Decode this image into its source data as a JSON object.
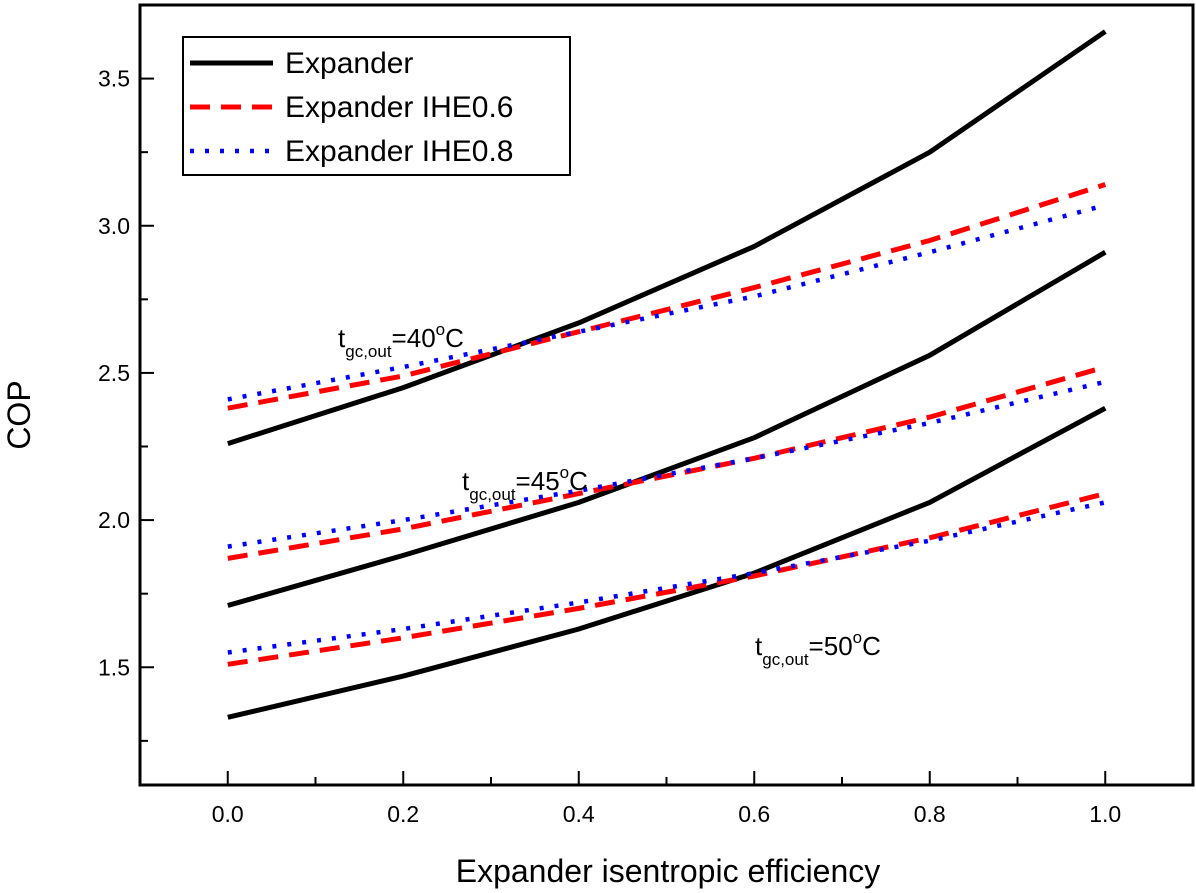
{
  "chart_data": {
    "type": "line",
    "title": "",
    "xlabel": "Expander isentropic efficiency",
    "ylabel": "COP",
    "xlim": [
      -0.1,
      1.1
    ],
    "ylim": [
      1.1,
      3.75
    ],
    "xticks": [
      0.0,
      0.2,
      0.4,
      0.6,
      0.8,
      1.0
    ],
    "xtick_labels": [
      "0.0",
      "0.2",
      "0.4",
      "0.6",
      "0.8",
      "1.0"
    ],
    "yticks": [
      1.5,
      2.0,
      2.5,
      3.0,
      3.5
    ],
    "ytick_labels": [
      "1.5",
      "2.0",
      "2.5",
      "3.0",
      "3.5"
    ],
    "grid": false,
    "legend_position": "top-left",
    "legend": [
      {
        "label": "Expander",
        "style": "solid",
        "color": "#000000"
      },
      {
        "label": "Expander IHE0.6",
        "style": "dashed",
        "color": "#ff0000"
      },
      {
        "label": "Expander IHE0.8",
        "style": "dotted",
        "color": "#0000ff"
      }
    ],
    "x": [
      0.0,
      0.2,
      0.4,
      0.6,
      0.8,
      1.0
    ],
    "groups": [
      {
        "annotation": {
          "base": "t",
          "sub": "gc,out",
          "mid": "=40",
          "sup": "o",
          "tail": "C"
        },
        "series": [
          {
            "name": "Expander",
            "values": [
              2.26,
              2.45,
              2.67,
              2.93,
              3.25,
              3.66
            ]
          },
          {
            "name": "Expander IHE0.6",
            "values": [
              2.38,
              2.49,
              2.64,
              2.79,
              2.95,
              3.14
            ]
          },
          {
            "name": "Expander IHE0.8",
            "values": [
              2.41,
              2.52,
              2.64,
              2.76,
              2.91,
              3.07
            ]
          }
        ]
      },
      {
        "annotation": {
          "base": "t",
          "sub": "gc,out",
          "mid": "=45",
          "sup": "o",
          "tail": "C"
        },
        "series": [
          {
            "name": "Expander",
            "values": [
              1.71,
              1.88,
              2.06,
              2.28,
              2.56,
              2.91
            ]
          },
          {
            "name": "Expander IHE0.6",
            "values": [
              1.87,
              1.97,
              2.09,
              2.21,
              2.35,
              2.52
            ]
          },
          {
            "name": "Expander IHE0.8",
            "values": [
              1.91,
              2.0,
              2.1,
              2.21,
              2.33,
              2.47
            ]
          }
        ]
      },
      {
        "annotation": {
          "base": "t",
          "sub": "gc,out",
          "mid": "=50",
          "sup": "o",
          "tail": "C"
        },
        "series": [
          {
            "name": "Expander",
            "values": [
              1.33,
              1.47,
              1.63,
              1.82,
              2.06,
              2.38
            ]
          },
          {
            "name": "Expander IHE0.6",
            "values": [
              1.51,
              1.6,
              1.7,
              1.81,
              1.94,
              2.09
            ]
          },
          {
            "name": "Expander IHE0.8",
            "values": [
              1.55,
              1.63,
              1.72,
              1.82,
              1.93,
              2.06
            ]
          }
        ]
      }
    ]
  }
}
